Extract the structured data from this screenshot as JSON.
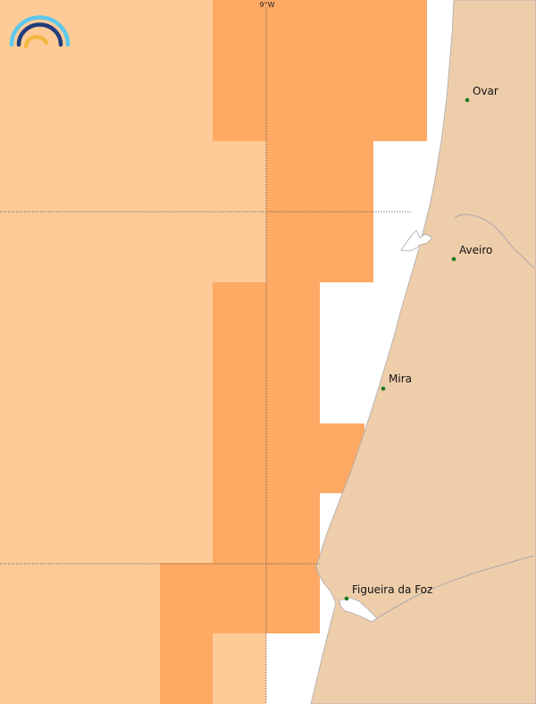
{
  "map": {
    "colors": {
      "sea_light": "#fecb98",
      "sea_dark": "#fea964",
      "land": "#eecdab",
      "coast": "#aaaaaa",
      "grid": "#555555",
      "city_dot": "#1a7a1a",
      "logo_outer": "#5bc8ec",
      "logo_mid": "#223b7a",
      "logo_inner": "#f5b740"
    },
    "meridian_label": "9°W",
    "cities": [
      {
        "name": "Ovar"
      },
      {
        "name": "Aveiro"
      },
      {
        "name": "Mira"
      },
      {
        "name": "Figueira da Foz"
      }
    ],
    "logo_icon": "rainbow-arc-logo"
  }
}
